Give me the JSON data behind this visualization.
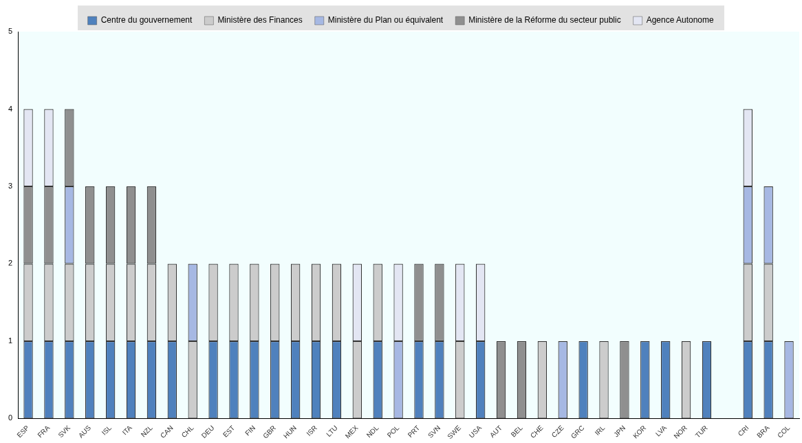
{
  "chart_data": {
    "type": "bar",
    "stacked": true,
    "legend": "top",
    "grid": false,
    "categories": [
      "ESP",
      "FRA",
      "SVK",
      "AUS",
      "ISL",
      "ITA",
      "NZL",
      "CAN",
      "CHL",
      "DEU",
      "EST",
      "FIN",
      "GBR",
      "HUN",
      "ISR",
      "LTU",
      "MEX",
      "NDL",
      "POL",
      "PRT",
      "SVN",
      "SWE",
      "USA",
      "AUT",
      "BEL",
      "CHE",
      "CZE",
      "GRC",
      "IRL",
      "JPN",
      "KOR",
      "LVA",
      "NOR",
      "TUR",
      null,
      "CRI",
      "BRA",
      "COL"
    ],
    "ylim": [
      0,
      5
    ],
    "yticks": [
      0,
      1,
      2,
      3,
      4,
      5
    ],
    "series": [
      {
        "name": "Centre du gouvernement",
        "color": "#4f81bd",
        "values": [
          1,
          1,
          1,
          1,
          1,
          1,
          1,
          1,
          null,
          1,
          1,
          1,
          1,
          1,
          1,
          1,
          null,
          1,
          null,
          1,
          1,
          null,
          1,
          null,
          null,
          null,
          null,
          1,
          null,
          null,
          1,
          1,
          null,
          1,
          null,
          1,
          1,
          null
        ]
      },
      {
        "name": "Ministère des Finances",
        "color": "#cccccc",
        "values": [
          1,
          1,
          1,
          1,
          1,
          1,
          1,
          1,
          1,
          1,
          1,
          1,
          1,
          1,
          1,
          1,
          1,
          1,
          null,
          null,
          null,
          1,
          null,
          null,
          null,
          1,
          null,
          null,
          1,
          null,
          null,
          null,
          1,
          null,
          null,
          1,
          1,
          null
        ]
      },
      {
        "name": "Ministère du Plan ou équivalent",
        "color": "#a6b8e3",
        "values": [
          null,
          null,
          1,
          null,
          null,
          null,
          null,
          null,
          1,
          null,
          null,
          null,
          null,
          null,
          null,
          null,
          null,
          null,
          1,
          null,
          null,
          null,
          null,
          null,
          null,
          null,
          1,
          null,
          null,
          null,
          null,
          null,
          null,
          null,
          null,
          1,
          1,
          1
        ]
      },
      {
        "name": "Ministère de la Réforme du secteur public",
        "color": "#8f8f8f",
        "values": [
          1,
          1,
          1,
          1,
          1,
          1,
          1,
          null,
          null,
          null,
          null,
          null,
          null,
          null,
          null,
          null,
          null,
          null,
          null,
          1,
          1,
          null,
          null,
          1,
          1,
          null,
          null,
          null,
          null,
          1,
          null,
          null,
          null,
          null,
          null,
          null,
          null,
          null
        ]
      },
      {
        "name": "Agence Autonome",
        "color": "#e3e6f3",
        "values": [
          1,
          1,
          null,
          null,
          null,
          null,
          null,
          null,
          null,
          null,
          null,
          null,
          null,
          null,
          null,
          null,
          1,
          null,
          1,
          null,
          null,
          1,
          1,
          null,
          null,
          null,
          null,
          null,
          null,
          null,
          null,
          null,
          null,
          null,
          null,
          1,
          null,
          null
        ]
      }
    ]
  }
}
